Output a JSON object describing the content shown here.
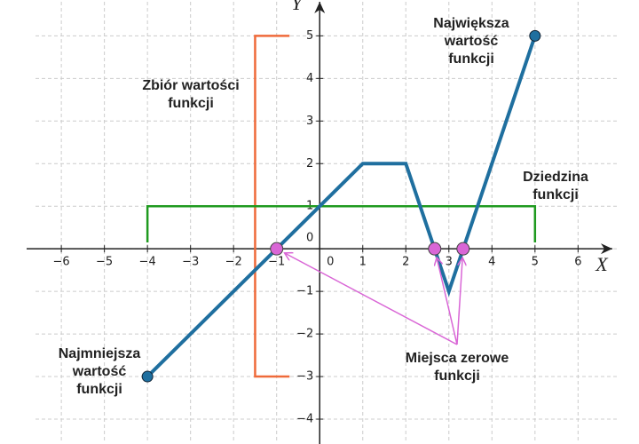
{
  "chart_data": {
    "type": "line",
    "x_label": "X",
    "y_label": "Y",
    "xlim": [
      -6.6,
      6.9
    ],
    "ylim": [
      -4.5,
      5.8
    ],
    "xticks": [
      {
        "value": -6,
        "label": "−6"
      },
      {
        "value": -5,
        "label": "−5"
      },
      {
        "value": -4,
        "label": "−4"
      },
      {
        "value": -3,
        "label": "−3"
      },
      {
        "value": -2,
        "label": "−2"
      },
      {
        "value": -1,
        "label": "−1"
      },
      0,
      1,
      2,
      3,
      4,
      5,
      6
    ],
    "yticks": [
      {
        "value": -4,
        "label": "−4"
      },
      {
        "value": -3,
        "label": "−3"
      },
      {
        "value": -2,
        "label": "−2"
      },
      {
        "value": -1,
        "label": "−1"
      },
      0,
      1,
      2,
      3,
      4,
      5
    ],
    "grid": true,
    "x": [
      -4,
      1,
      2,
      3,
      5
    ],
    "values": [
      -3,
      2,
      2,
      -1,
      5
    ],
    "color": "#1f6f9f",
    "zeros": {
      "x": [
        -1,
        2.67,
        3.33
      ],
      "values": [
        0,
        0,
        0
      ],
      "color": "#d966d6"
    },
    "range": {
      "values": [
        -3,
        5
      ],
      "color": "#ef6a3a"
    },
    "domain": {
      "values": [
        -4,
        5
      ],
      "color": "#1f9a1f"
    },
    "annotations": [
      {
        "lines": [
          "Największa",
          "wartość",
          "funkcji"
        ],
        "color": "#1f6f9f"
      },
      {
        "lines": [
          "Najmniejsza",
          "wartość",
          "funkcji"
        ],
        "color": "#1f6f9f"
      },
      {
        "lines": [
          "Zbiór wartości",
          "funkcji"
        ],
        "color": "#ef6a3a"
      },
      {
        "lines": [
          "Dziedzina",
          "funkcji"
        ],
        "color": "#1f9a1f"
      },
      {
        "lines": [
          "Miejsca zerowe",
          "funkcji"
        ],
        "color": "#d966d6"
      }
    ]
  }
}
